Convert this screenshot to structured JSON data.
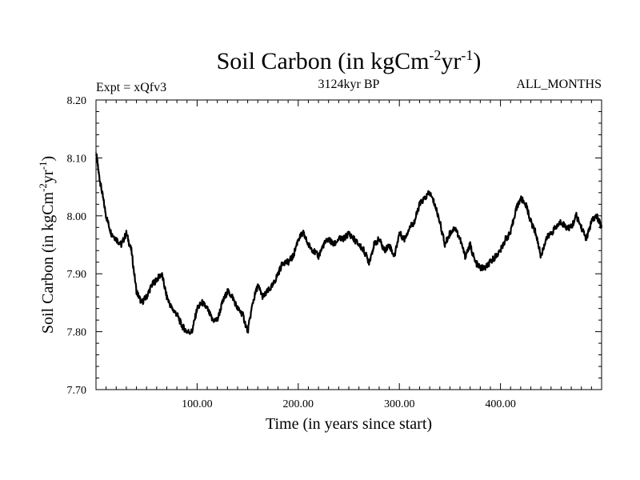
{
  "chart_data": {
    "type": "line",
    "title": "Soil Carbon (in kgCm",
    "title_sup1": "-2",
    "title_mid": "yr",
    "title_sup2": "-1",
    "title_end": ")",
    "left_label": "Expt = xQfv3",
    "center_label": "3124kyr BP",
    "right_label": "ALL_MONTHS",
    "xlabel": "Time (in years since start)",
    "ylabel": "Soil Carbon (in kgCm",
    "ylabel_sup1": "-2",
    "ylabel_mid": "yr",
    "ylabel_sup2": "-1",
    "ylabel_end": ")",
    "xlim": [
      0,
      500
    ],
    "ylim": [
      7.7,
      8.2
    ],
    "x_ticks": [
      {
        "value": 100,
        "label": "100.00"
      },
      {
        "value": 200,
        "label": "200.00"
      },
      {
        "value": 300,
        "label": "300.00"
      },
      {
        "value": 400,
        "label": "400.00"
      }
    ],
    "y_ticks": [
      {
        "value": 7.7,
        "label": "7.70"
      },
      {
        "value": 7.8,
        "label": "7.80"
      },
      {
        "value": 7.9,
        "label": "7.90"
      },
      {
        "value": 8.0,
        "label": "8.00"
      },
      {
        "value": 8.1,
        "label": "8.10"
      },
      {
        "value": 8.2,
        "label": "8.20"
      }
    ],
    "series": [
      {
        "name": "Soil Carbon",
        "color": "#000000",
        "x": [
          0,
          3,
          6,
          10,
          15,
          20,
          25,
          30,
          35,
          40,
          45,
          50,
          55,
          60,
          65,
          70,
          75,
          80,
          85,
          90,
          95,
          100,
          105,
          110,
          115,
          120,
          125,
          130,
          135,
          140,
          145,
          150,
          155,
          160,
          165,
          170,
          175,
          180,
          185,
          190,
          195,
          200,
          205,
          210,
          215,
          220,
          225,
          230,
          235,
          240,
          245,
          250,
          255,
          260,
          265,
          270,
          275,
          280,
          285,
          290,
          295,
          300,
          305,
          310,
          315,
          320,
          325,
          330,
          335,
          340,
          345,
          350,
          355,
          360,
          365,
          370,
          375,
          380,
          385,
          390,
          395,
          400,
          405,
          410,
          415,
          420,
          425,
          430,
          435,
          440,
          445,
          450,
          455,
          460,
          465,
          470,
          475,
          480,
          485,
          490,
          495,
          500
        ],
        "y": [
          8.11,
          8.07,
          8.04,
          8.0,
          7.97,
          7.96,
          7.95,
          7.97,
          7.94,
          7.87,
          7.85,
          7.86,
          7.88,
          7.89,
          7.9,
          7.86,
          7.84,
          7.83,
          7.81,
          7.8,
          7.8,
          7.84,
          7.85,
          7.84,
          7.82,
          7.82,
          7.85,
          7.87,
          7.86,
          7.84,
          7.83,
          7.8,
          7.85,
          7.88,
          7.86,
          7.87,
          7.88,
          7.9,
          7.92,
          7.92,
          7.93,
          7.96,
          7.97,
          7.95,
          7.94,
          7.93,
          7.95,
          7.96,
          7.95,
          7.96,
          7.96,
          7.97,
          7.96,
          7.95,
          7.94,
          7.92,
          7.95,
          7.96,
          7.94,
          7.95,
          7.93,
          7.97,
          7.96,
          7.98,
          7.99,
          8.02,
          8.03,
          8.04,
          8.02,
          7.99,
          7.95,
          7.97,
          7.98,
          7.96,
          7.93,
          7.95,
          7.92,
          7.91,
          7.91,
          7.92,
          7.93,
          7.94,
          7.96,
          7.97,
          8.01,
          8.03,
          8.02,
          7.99,
          7.97,
          7.93,
          7.96,
          7.97,
          7.98,
          7.99,
          7.98,
          7.98,
          8.0,
          7.98,
          7.96,
          7.99,
          8.0,
          7.98
        ]
      }
    ],
    "grid": false,
    "legend": "none"
  }
}
